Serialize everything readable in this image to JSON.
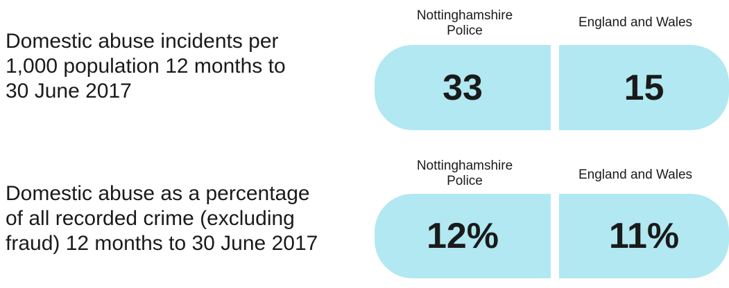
{
  "metric1": {
    "description": "Domestic abuse incidents per 1,000 population 12 months to 30 June 2017",
    "force_label": "Nottinghamshire Police",
    "national_label": "England and Wales",
    "force_value": "33",
    "national_value": "15"
  },
  "metric2": {
    "description": "Domestic abuse as a percentage of all recorded crime (excluding fraud) 12 months to 30 June 2017",
    "force_label": "Nottinghamshire Police",
    "national_label": "England and Wales",
    "force_value": "12%",
    "national_value": "11%"
  },
  "colors": {
    "pill_fill": "#b1e8f1"
  }
}
